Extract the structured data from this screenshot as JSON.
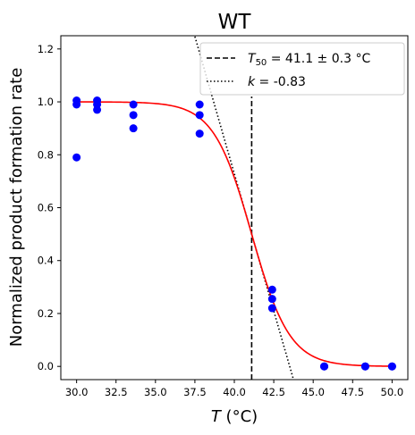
{
  "chart_data": {
    "type": "scatter",
    "title": "WT",
    "xlabel_var": "T",
    "xlabel_unit": " (°C)",
    "ylabel": "Normalized product formation rate",
    "xlim": [
      29.0,
      51.0
    ],
    "ylim": [
      -0.05,
      1.25
    ],
    "xticks": [
      30.0,
      32.5,
      35.0,
      37.5,
      40.0,
      42.5,
      45.0,
      47.5,
      50.0
    ],
    "xtick_labels": [
      "30.0",
      "32.5",
      "35.0",
      "37.5",
      "40.0",
      "42.5",
      "45.0",
      "47.5",
      "50.0"
    ],
    "yticks": [
      0.0,
      0.2,
      0.4,
      0.6,
      0.8,
      1.0,
      1.2
    ],
    "ytick_labels": [
      "0.0",
      "0.2",
      "0.4",
      "0.6",
      "0.8",
      "1.0",
      "1.2"
    ],
    "grid": false,
    "legend_position": "top-right",
    "points": [
      {
        "x": 30.0,
        "y": 1.005
      },
      {
        "x": 30.0,
        "y": 0.99
      },
      {
        "x": 30.0,
        "y": 0.79
      },
      {
        "x": 31.3,
        "y": 1.005
      },
      {
        "x": 31.3,
        "y": 0.99
      },
      {
        "x": 31.3,
        "y": 0.97
      },
      {
        "x": 33.6,
        "y": 0.99
      },
      {
        "x": 33.6,
        "y": 0.95
      },
      {
        "x": 33.6,
        "y": 0.9
      },
      {
        "x": 37.8,
        "y": 0.99
      },
      {
        "x": 37.8,
        "y": 0.95
      },
      {
        "x": 37.8,
        "y": 0.88
      },
      {
        "x": 42.4,
        "y": 0.29
      },
      {
        "x": 42.4,
        "y": 0.255
      },
      {
        "x": 42.4,
        "y": 0.22
      },
      {
        "x": 45.7,
        "y": 0.0
      },
      {
        "x": 45.7,
        "y": 0.0
      },
      {
        "x": 48.3,
        "y": 0.0
      },
      {
        "x": 48.3,
        "y": 0.0
      },
      {
        "x": 50.0,
        "y": 0.0
      },
      {
        "x": 50.0,
        "y": 0.0
      }
    ],
    "fit": {
      "type": "sigmoid",
      "t50": 41.1,
      "k": -0.83,
      "color": "#ff0000"
    },
    "vline": {
      "x": 41.1,
      "style": "dashed",
      "color": "#000000"
    },
    "tangent": {
      "style": "dotted",
      "color": "#000000",
      "slope_per_degree": -0.2075
    },
    "legend": [
      {
        "style": "dashed",
        "var": "T",
        "sub": "50",
        "text": " = 41.1 ± 0.3 °C"
      },
      {
        "style": "dotted",
        "var": "k",
        "sub": "",
        "text": " = -0.83"
      }
    ],
    "colors": {
      "points": "#0000ff",
      "fit": "#ff0000",
      "lines": "#000000"
    }
  }
}
